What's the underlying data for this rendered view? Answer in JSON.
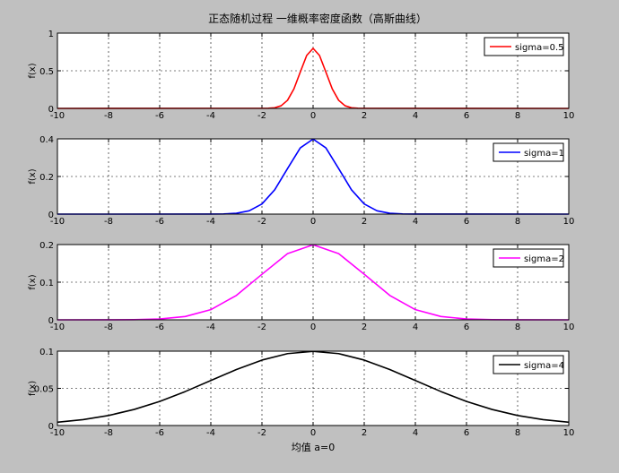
{
  "figure": {
    "title": "正态随机过程 一维概率密度函数（高斯曲线）",
    "xlabel": "均值 a=0",
    "background": "#c0c0c0",
    "axes_background": "#ffffff"
  },
  "chart_data": [
    {
      "type": "line",
      "xlim": [
        -10,
        10
      ],
      "ylim": [
        0,
        1
      ],
      "xticks": [
        -10,
        -8,
        -6,
        -4,
        -2,
        0,
        2,
        4,
        6,
        8,
        10
      ],
      "yticks": [
        0,
        0.5,
        1
      ],
      "ylabel": "f(x)",
      "grid": true,
      "legend_position": "top-right",
      "series": [
        {
          "name": "sigma=0.5",
          "color": "#ff0000",
          "x": [
            -10,
            -1.75,
            -1.5,
            -1.25,
            -1,
            -0.75,
            -0.5,
            -0.25,
            0,
            0.25,
            0.5,
            0.75,
            1,
            1.25,
            1.5,
            1.75,
            10
          ],
          "y": [
            0,
            0.0018,
            0.0089,
            0.035,
            0.108,
            0.259,
            0.4839,
            0.7041,
            0.7979,
            0.7041,
            0.4839,
            0.259,
            0.108,
            0.035,
            0.0089,
            0.0018,
            0
          ]
        }
      ]
    },
    {
      "type": "line",
      "xlim": [
        -10,
        10
      ],
      "ylim": [
        0,
        0.4
      ],
      "xticks": [
        -10,
        -8,
        -6,
        -4,
        -2,
        0,
        2,
        4,
        6,
        8,
        10
      ],
      "yticks": [
        0,
        0.2,
        0.4
      ],
      "ylabel": "f(x)",
      "grid": true,
      "legend_position": "top-right",
      "series": [
        {
          "name": "sigma=1",
          "color": "#0000ff",
          "x": [
            -10,
            -4,
            -3.5,
            -3,
            -2.5,
            -2,
            -1.5,
            -1,
            -0.5,
            0,
            0.5,
            1,
            1.5,
            2,
            2.5,
            3,
            3.5,
            4,
            10
          ],
          "y": [
            0,
            0.0001,
            0.0009,
            0.0044,
            0.0175,
            0.054,
            0.1295,
            0.242,
            0.3521,
            0.3989,
            0.3521,
            0.242,
            0.1295,
            0.054,
            0.0175,
            0.0044,
            0.0009,
            0.0001,
            0
          ]
        }
      ]
    },
    {
      "type": "line",
      "xlim": [
        -10,
        10
      ],
      "ylim": [
        0,
        0.2
      ],
      "xticks": [
        -10,
        -8,
        -6,
        -4,
        -2,
        0,
        2,
        4,
        6,
        8,
        10
      ],
      "yticks": [
        0,
        0.1,
        0.2
      ],
      "ylabel": "f(x)",
      "grid": true,
      "legend_position": "top-right",
      "series": [
        {
          "name": "sigma=2",
          "color": "#ff00ff",
          "x": [
            -10,
            -8,
            -7,
            -6,
            -5,
            -4,
            -3,
            -2,
            -1,
            0,
            1,
            2,
            3,
            4,
            5,
            6,
            7,
            8,
            10
          ],
          "y": [
            0,
            0.0001,
            0.0004,
            0.0022,
            0.0088,
            0.027,
            0.0648,
            0.121,
            0.176,
            0.1995,
            0.176,
            0.121,
            0.0648,
            0.027,
            0.0088,
            0.0022,
            0.0004,
            0.0001,
            0
          ]
        }
      ]
    },
    {
      "type": "line",
      "xlim": [
        -10,
        10
      ],
      "ylim": [
        0,
        0.1
      ],
      "xticks": [
        -10,
        -8,
        -6,
        -4,
        -2,
        0,
        2,
        4,
        6,
        8,
        10
      ],
      "yticks": [
        0,
        0.05,
        0.1
      ],
      "ylabel": "f(x)",
      "grid": true,
      "legend_position": "top-right",
      "series": [
        {
          "name": "sigma=4",
          "color": "#000000",
          "x": [
            -10,
            -9,
            -8,
            -7,
            -6,
            -5,
            -4,
            -3,
            -2,
            -1,
            0,
            1,
            2,
            3,
            4,
            5,
            6,
            7,
            8,
            9,
            10
          ],
          "y": [
            0.0044,
            0.0079,
            0.0135,
            0.0216,
            0.0324,
            0.0457,
            0.0605,
            0.0753,
            0.088,
            0.0967,
            0.0997,
            0.0967,
            0.088,
            0.0753,
            0.0605,
            0.0457,
            0.0324,
            0.0216,
            0.0135,
            0.0079,
            0.0044
          ]
        }
      ]
    }
  ]
}
